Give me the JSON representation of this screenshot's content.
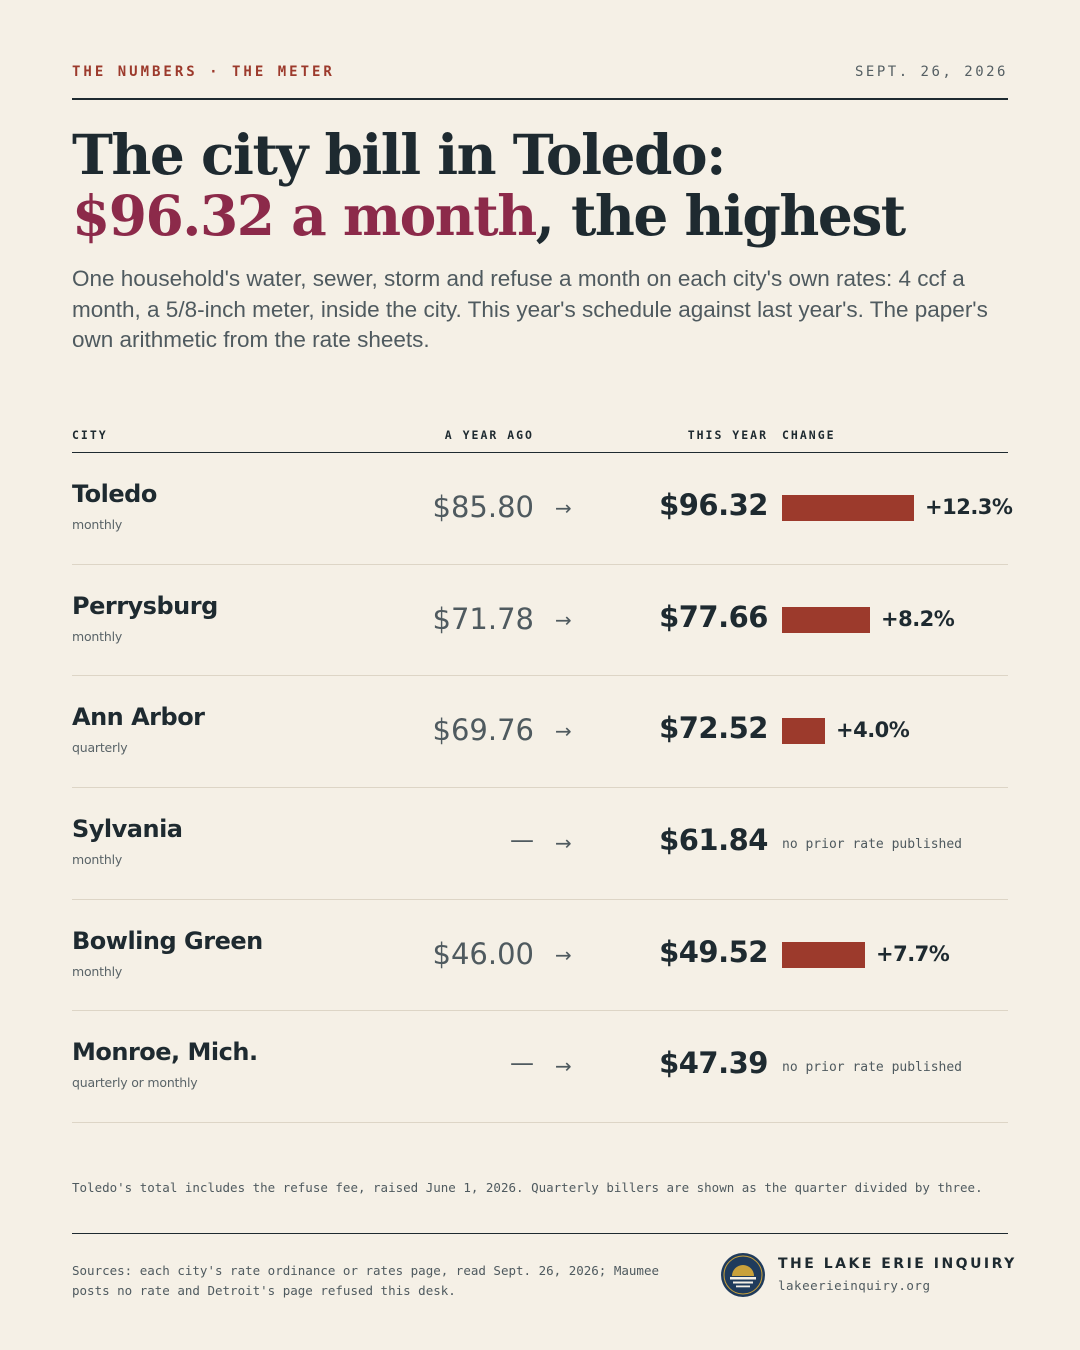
{
  "header": {
    "kicker": "THE NUMBERS · THE METER",
    "date": "SEPT. 26, 2026"
  },
  "headline": {
    "line1": "The city bill in Toledo:",
    "accent": "$96.32 a month",
    "rest": ", the highest"
  },
  "dek": "One household's water, sewer, storm and refuse a month on each city's own rates: 4 ccf a month, a 5/8-inch meter, inside the city. This year's schedule against last year's. The paper's own arithmetic from the rate sheets.",
  "table": {
    "col_city": "CITY",
    "col_prior": "A YEAR AGO",
    "col_current": "THIS YEAR",
    "col_change": "CHANGE",
    "arrow": "→",
    "none_mark": "—",
    "no_prior_text": "no prior rate published"
  },
  "colors": {
    "bar": "#9c3a2c",
    "accent": "#8c2a4a",
    "ink": "#1e2a30",
    "background": "#f5f0e6"
  },
  "chart_data": {
    "type": "table",
    "columns": [
      "CITY",
      "A YEAR AGO",
      "THIS YEAR",
      "CHANGE"
    ],
    "bar_scale_max_pct": 12.3,
    "rows": [
      {
        "city": "Toledo",
        "cadence": "monthly",
        "prior": "$85.80",
        "current": "$96.32",
        "change_label": "+12.3%",
        "change_pct": 12.3
      },
      {
        "city": "Perrysburg",
        "cadence": "monthly",
        "prior": "$71.78",
        "current": "$77.66",
        "change_label": "+8.2%",
        "change_pct": 8.2
      },
      {
        "city": "Ann Arbor",
        "cadence": "quarterly",
        "prior": "$69.76",
        "current": "$72.52",
        "change_label": "+4.0%",
        "change_pct": 4.0
      },
      {
        "city": "Sylvania",
        "cadence": "monthly",
        "prior": null,
        "current": "$61.84",
        "change_label": null,
        "change_pct": null
      },
      {
        "city": "Bowling Green",
        "cadence": "monthly",
        "prior": "$46.00",
        "current": "$49.52",
        "change_label": "+7.7%",
        "change_pct": 7.7
      },
      {
        "city": "Monroe, Mich.",
        "cadence": "quarterly or monthly",
        "prior": null,
        "current": "$47.39",
        "change_label": null,
        "change_pct": null
      }
    ]
  },
  "footnote": "Toledo's total includes the refuse fee, raised June 1, 2026. Quarterly billers are shown as the quarter divided by three.",
  "sources": "Sources: each city's rate ordinance or rates page, read Sept. 26, 2026; Maumee posts no rate and Detroit's page refused this desk.",
  "brand": {
    "name": "THE LAKE ERIE INQUIRY",
    "url": "lakeerieinquiry.org",
    "logo_icon": "lake-sunset-seal-icon"
  }
}
